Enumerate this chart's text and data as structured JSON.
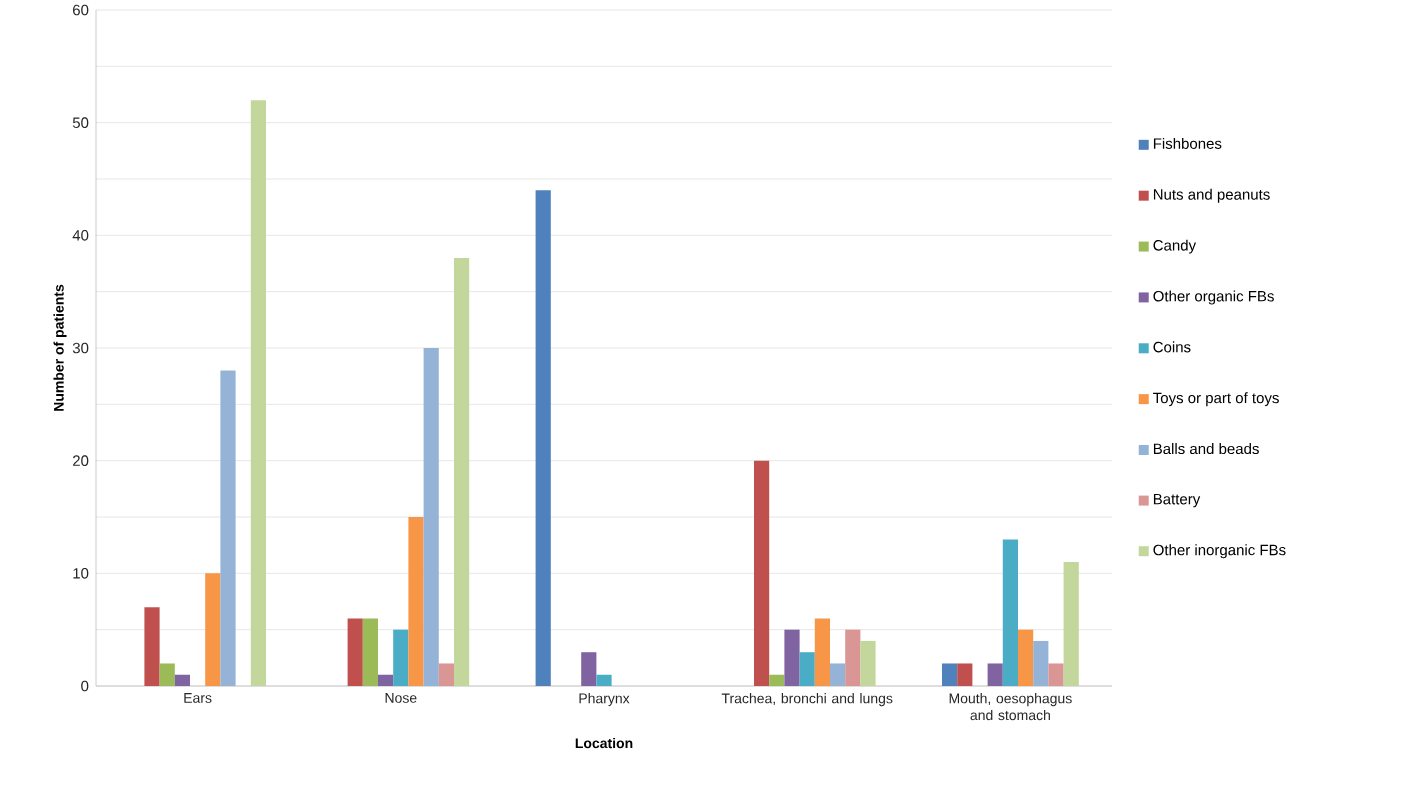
{
  "chart_data": {
    "type": "bar",
    "xlabel": "Location",
    "ylabel": "Number of patients",
    "categories": [
      "Ears",
      "Nose",
      "Pharynx",
      "Trachea, bronchi and lungs",
      "Mouth, oesophagus and stomach"
    ],
    "series": [
      {
        "name": "Fishbones",
        "color": "#4f81bd",
        "values": [
          0,
          0,
          44,
          0,
          2
        ]
      },
      {
        "name": "Nuts and peanuts",
        "color": "#c0504d",
        "values": [
          7,
          6,
          0,
          20,
          2
        ]
      },
      {
        "name": "Candy",
        "color": "#9bbb59",
        "values": [
          2,
          6,
          0,
          1,
          0
        ]
      },
      {
        "name": "Other organic FBs",
        "color": "#8064a2",
        "values": [
          1,
          1,
          3,
          5,
          2
        ]
      },
      {
        "name": "Coins",
        "color": "#4bacc6",
        "values": [
          0,
          5,
          1,
          3,
          13
        ]
      },
      {
        "name": "Toys or part of toys",
        "color": "#f79646",
        "values": [
          10,
          15,
          0,
          6,
          5
        ]
      },
      {
        "name": "Balls and beads",
        "color": "#95b3d7",
        "values": [
          28,
          30,
          0,
          2,
          4
        ]
      },
      {
        "name": "Battery",
        "color": "#d99694",
        "values": [
          0,
          2,
          0,
          5,
          2
        ]
      },
      {
        "name": "Other inorganic FBs",
        "color": "#c3d69b",
        "values": [
          52,
          38,
          0,
          4,
          11
        ]
      }
    ],
    "ylim": [
      0,
      60
    ],
    "yticks": [
      0,
      {
        "value": 5,
        "label": null
      },
      10,
      {
        "value": 15,
        "label": null
      },
      20,
      {
        "value": 25,
        "label": null
      },
      30,
      {
        "value": 35,
        "label": null
      },
      40,
      {
        "value": 45,
        "label": null
      },
      50,
      {
        "value": 55,
        "label": null
      },
      60
    ],
    "grid": "y",
    "legend": "right"
  }
}
